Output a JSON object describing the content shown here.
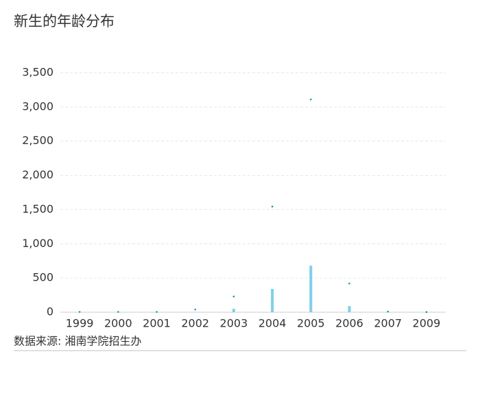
{
  "chart_data": {
    "type": "bar",
    "title": "新生的年龄分布",
    "source": "数据来源: 湘南学院招生办",
    "categories": [
      "1999",
      "2000",
      "2001",
      "2002",
      "2003",
      "2004",
      "2005",
      "2006",
      "2007",
      "2009"
    ],
    "series": [
      {
        "type": "bar",
        "color": "#7ecfea",
        "values": [
          1,
          1,
          1,
          5,
          50,
          340,
          680,
          90,
          2,
          1
        ]
      },
      {
        "type": "scatter",
        "color": "#2a8fb0",
        "values": [
          5,
          5,
          5,
          40,
          230,
          1545,
          3110,
          420,
          10,
          3
        ]
      }
    ],
    "ylim": [
      0,
      3500
    ],
    "yticks": [
      0,
      {
        "value": 500,
        "label": "500"
      },
      {
        "value": 1000,
        "label": "1,000"
      },
      {
        "value": 1500,
        "label": "1,500"
      },
      {
        "value": 2000,
        "label": "2,000"
      },
      {
        "value": 2500,
        "label": "2,500"
      },
      {
        "value": 3000,
        "label": "3,000"
      },
      {
        "value": 3500,
        "label": "3,500"
      }
    ],
    "grid": true
  }
}
